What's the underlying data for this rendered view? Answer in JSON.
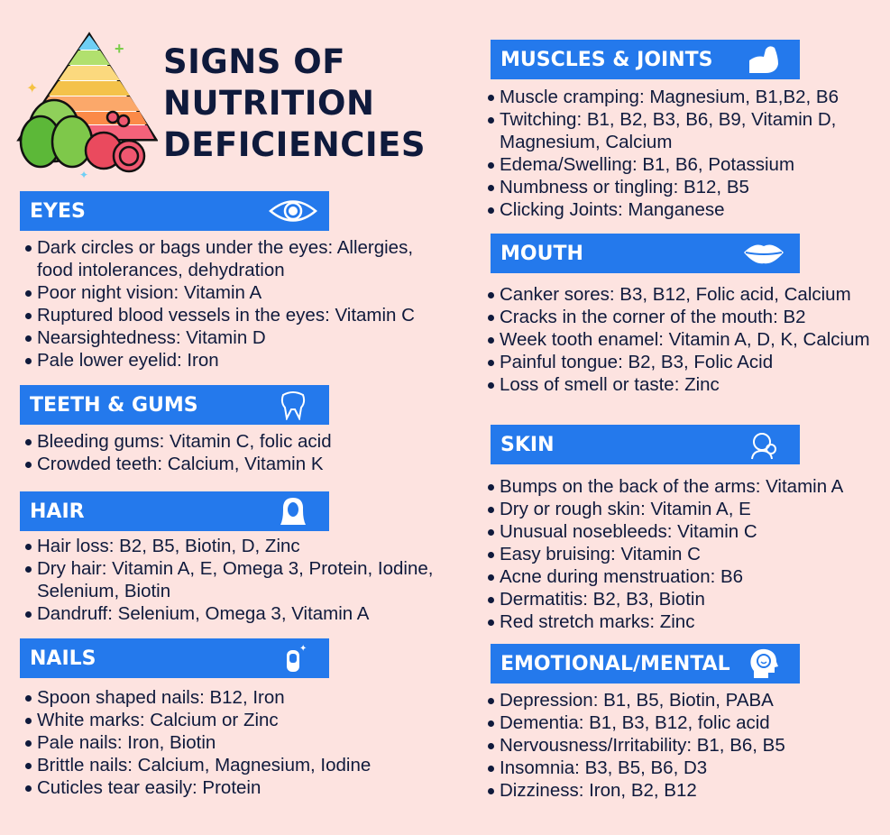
{
  "title": [
    "SIGNS OF",
    "NUTRITION",
    "DEFICIENCIES"
  ],
  "colors": {
    "background": "#fde3e0",
    "header": "#2479ec",
    "text": "#0f1a3c"
  },
  "sections": {
    "eyes": {
      "label": "EYES",
      "icon": "eye-icon",
      "items": [
        "Dark circles or bags under the eyes: Allergies, food intolerances, dehydration",
        "Poor night vision: Vitamin A",
        "Ruptured blood vessels in the eyes: Vitamin C",
        "Nearsightedness: Vitamin D",
        "Pale lower eyelid: Iron"
      ]
    },
    "teeth": {
      "label": "TEETH & GUMS",
      "icon": "tooth-icon",
      "items": [
        "Bleeding gums: Vitamin C, folic acid",
        "Crowded teeth: Calcium, Vitamin K"
      ]
    },
    "hair": {
      "label": "HAIR",
      "icon": "hair-icon",
      "items": [
        "Hair loss: B2, B5, Biotin, D, Zinc",
        "Dry hair: Vitamin A, E, Omega 3, Protein, Iodine, Selenium, Biotin",
        "Dandruff: Selenium, Omega 3, Vitamin A"
      ]
    },
    "nails": {
      "label": "NAILS",
      "icon": "nail-icon",
      "items": [
        "Spoon shaped nails: B12, Iron",
        "White marks: Calcium or Zinc",
        "Pale nails: Iron, Biotin",
        "Brittle nails: Calcium, Magnesium, Iodine",
        "Cuticles tear easily: Protein"
      ]
    },
    "muscles": {
      "label": "MUSCLES & JOINTS",
      "icon": "muscle-icon",
      "items": [
        "Muscle cramping: Magnesium, B1,B2, B6",
        "Twitching: B1, B2, B3, B6, B9, Vitamin D, Magnesium, Calcium",
        "Edema/Swelling: B1, B6, Potassium",
        "Numbness or tingling: B12, B5",
        "Clicking Joints: Manganese"
      ]
    },
    "mouth": {
      "label": "MOUTH",
      "icon": "lips-icon",
      "items": [
        "Canker sores: B3, B12, Folic acid, Calcium",
        "Cracks in the corner of the mouth: B2",
        "Week tooth enamel: Vitamin A, D, K, Calcium",
        "Painful tongue: B2, B3, Folic Acid",
        "Loss of smell or taste: Zinc"
      ]
    },
    "skin": {
      "label": "SKIN",
      "icon": "skin-care-icon",
      "items": [
        "Bumps on the back of the arms: Vitamin A",
        "Dry or rough skin: Vitamin A, E",
        "Unusual nosebleeds: Vitamin C",
        "Easy bruising: Vitamin C",
        "Acne during menstruation: B6",
        "Dermatitis: B2, B3, Biotin",
        "Red stretch marks: Zinc"
      ]
    },
    "emotional": {
      "label": "EMOTIONAL/MENTAL",
      "icon": "head-smile-icon",
      "items": [
        "Depression: B1, B5, Biotin, PABA",
        "Dementia: B1, B3, B12, folic acid",
        "Nervousness/Irritability: B1, B6, B5",
        "Insomnia: B3, B5, B6, D3",
        "Dizziness: Iron, B2, B12"
      ]
    }
  }
}
